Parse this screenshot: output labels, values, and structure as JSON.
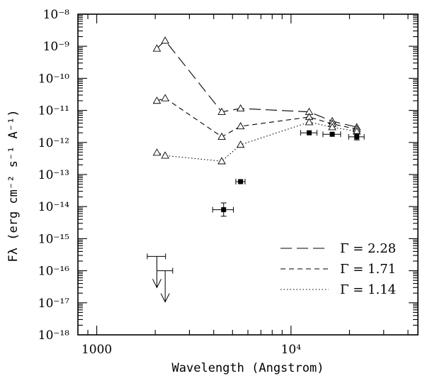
{
  "chart_data": {
    "type": "line",
    "xscale": "log",
    "yscale": "log",
    "xlim": [
      800,
      45000
    ],
    "ylim": [
      1e-18,
      1e-08
    ],
    "xlabel": "Wavelength (Angstrom)",
    "ylabel": "Fλ (erg cm⁻² s⁻¹ A⁻¹)",
    "x_tick_labels": [
      {
        "value": 1000,
        "label": "1000"
      },
      {
        "value": 10000,
        "label": "10⁴"
      }
    ],
    "y_tick_labels": [
      {
        "value": 1e-18,
        "label": "10⁻¹⁸"
      },
      {
        "value": 1e-17,
        "label": "10⁻¹⁷"
      },
      {
        "value": 1e-16,
        "label": "10⁻¹⁶"
      },
      {
        "value": 1e-15,
        "label": "10⁻¹⁵"
      },
      {
        "value": 1e-14,
        "label": "10⁻¹⁴"
      },
      {
        "value": 1e-13,
        "label": "10⁻¹³"
      },
      {
        "value": 1e-12,
        "label": "10⁻¹²"
      },
      {
        "value": 1e-11,
        "label": "10⁻¹¹"
      },
      {
        "value": 1e-10,
        "label": "10⁻¹⁰"
      },
      {
        "value": 1e-09,
        "label": "10⁻⁹"
      },
      {
        "value": 1e-08,
        "label": "10⁻⁸"
      }
    ],
    "series": [
      {
        "name": "Γ = 2.28",
        "dash": "long-dash",
        "marker": "triangle",
        "x": [
          2040,
          2250,
          4400,
          5500,
          12400,
          16300,
          21800
        ],
        "y": [
          8.5e-10,
          1.5e-09,
          9e-12,
          1.15e-11,
          9e-12,
          4.6e-12,
          3e-12
        ]
      },
      {
        "name": "Γ = 1.71",
        "dash": "short-dash",
        "marker": "triangle",
        "x": [
          2040,
          2250,
          4400,
          5500,
          12400,
          16300,
          21800
        ],
        "y": [
          2e-11,
          2.4e-11,
          1.5e-12,
          3.2e-12,
          6.2e-12,
          3.8e-12,
          2.6e-12
        ]
      },
      {
        "name": "Γ = 1.14",
        "dash": "dotted",
        "marker": "triangle",
        "x": [
          2040,
          2250,
          4400,
          5500,
          12400,
          16300,
          21800
        ],
        "y": [
          4.8e-13,
          3.9e-13,
          2.6e-13,
          8.5e-13,
          4.3e-12,
          3e-12,
          2.2e-12
        ]
      }
    ],
    "observations": {
      "marker": "filled-square",
      "points": [
        {
          "x": 4500,
          "y": 8e-15,
          "xerr_lo": 3950,
          "xerr_hi": 5050,
          "yerr_lo": 5e-15,
          "yerr_hi": 1.3e-14
        },
        {
          "x": 5500,
          "y": 6e-14,
          "xerr_lo": 5200,
          "xerr_hi": 5800
        },
        {
          "x": 12400,
          "y": 2e-12,
          "xerr_lo": 11200,
          "xerr_hi": 13600
        },
        {
          "x": 16300,
          "y": 1.8e-12,
          "xerr_lo": 14600,
          "xerr_hi": 18000
        },
        {
          "x": 21800,
          "y": 1.5e-12,
          "xerr_lo": 19800,
          "xerr_hi": 23800,
          "yerr_lo": 1.2e-12,
          "yerr_hi": 1.9e-12
        }
      ]
    },
    "upper_limits": [
      {
        "x": 2040,
        "y": 2.8e-16,
        "x_lo": 1820,
        "x_hi": 2260
      },
      {
        "x": 2250,
        "y": 1e-16,
        "x_lo": 2040,
        "x_hi": 2460
      }
    ],
    "legend": {
      "position": "lower-right",
      "entries": [
        {
          "dash": "long-dash",
          "label": "Γ = 2.28"
        },
        {
          "dash": "short-dash",
          "label": "Γ = 1.71"
        },
        {
          "dash": "dotted",
          "label": "Γ = 1.14"
        }
      ]
    },
    "grid": false
  }
}
